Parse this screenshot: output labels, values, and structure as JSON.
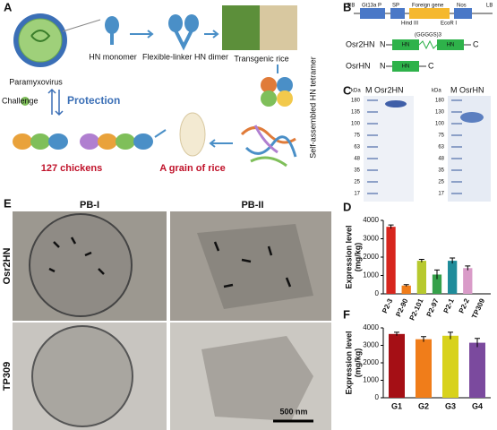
{
  "panel_letters": [
    "A",
    "B",
    "C",
    "D",
    "E",
    "F"
  ],
  "schematic": {
    "virus": "Paramyxovirus",
    "monomer": "HN monomer",
    "dimer": "Flexible-linker HN dimer",
    "rice": "Transgenic rice",
    "tetramer": "Self-assembled HN tetramer",
    "challenge": "Challenge",
    "protection": "Protection",
    "chickens": "127 chickens",
    "grain": "A grain of rice"
  },
  "construct": {
    "rb": "RB",
    "promoter": "Gt13a P",
    "sp": "SP",
    "foreign": "Foreign gene",
    "nos": "Nos",
    "lb": "LB",
    "hind": "Hind III",
    "ecor": "EcoR I",
    "osr2hn": "Osr2HN",
    "osrhn": "OsrHN",
    "n": "N",
    "c": "C",
    "hn": "HN",
    "linker": "(GGGGS)3"
  },
  "gel": {
    "unit": "kDa",
    "left_title": "M Osr2HN",
    "right_title": "M OsrHN",
    "left_markers": [
      180,
      135,
      100,
      75,
      63,
      48,
      35,
      25,
      17
    ],
    "right_markers": [
      180,
      130,
      100,
      75,
      63,
      48,
      35,
      25,
      17
    ]
  },
  "tem": {
    "col1": "PB-I",
    "col2": "PB-II",
    "row1": "Osr2HN",
    "row2": "TP309",
    "scale": "500 nm"
  },
  "chart_data": [
    {
      "type": "bar",
      "ylabel": "Expression level",
      "ylabel_unit": "(mg/kg)",
      "categories": [
        "P2-3",
        "P2-90",
        "P2-101",
        "P2-97",
        "P2-1",
        "P2-2",
        "TP309"
      ],
      "values": [
        3650,
        450,
        1800,
        1050,
        1800,
        1400,
        0
      ],
      "errors": [
        100,
        50,
        80,
        250,
        150,
        120,
        0
      ],
      "colors": [
        "#d7261e",
        "#f07d1a",
        "#b7c92e",
        "#35a04a",
        "#1f8c9a",
        "#d99bc8",
        "#222222"
      ],
      "ylim": [
        0,
        4000
      ],
      "yticks": [
        0,
        1000,
        2000,
        3000,
        4000
      ]
    },
    {
      "type": "bar",
      "ylabel": "Expression level",
      "ylabel_unit": "(mg/kg)",
      "categories": [
        "G1",
        "G2",
        "G3",
        "G4"
      ],
      "values": [
        3650,
        3350,
        3550,
        3150
      ],
      "errors": [
        100,
        150,
        200,
        250
      ],
      "colors": [
        "#a50f15",
        "#f07d1a",
        "#d8d21c",
        "#7b4a9e"
      ],
      "ylim": [
        0,
        4000
      ],
      "yticks": [
        0,
        1000,
        2000,
        3000,
        4000
      ]
    }
  ]
}
